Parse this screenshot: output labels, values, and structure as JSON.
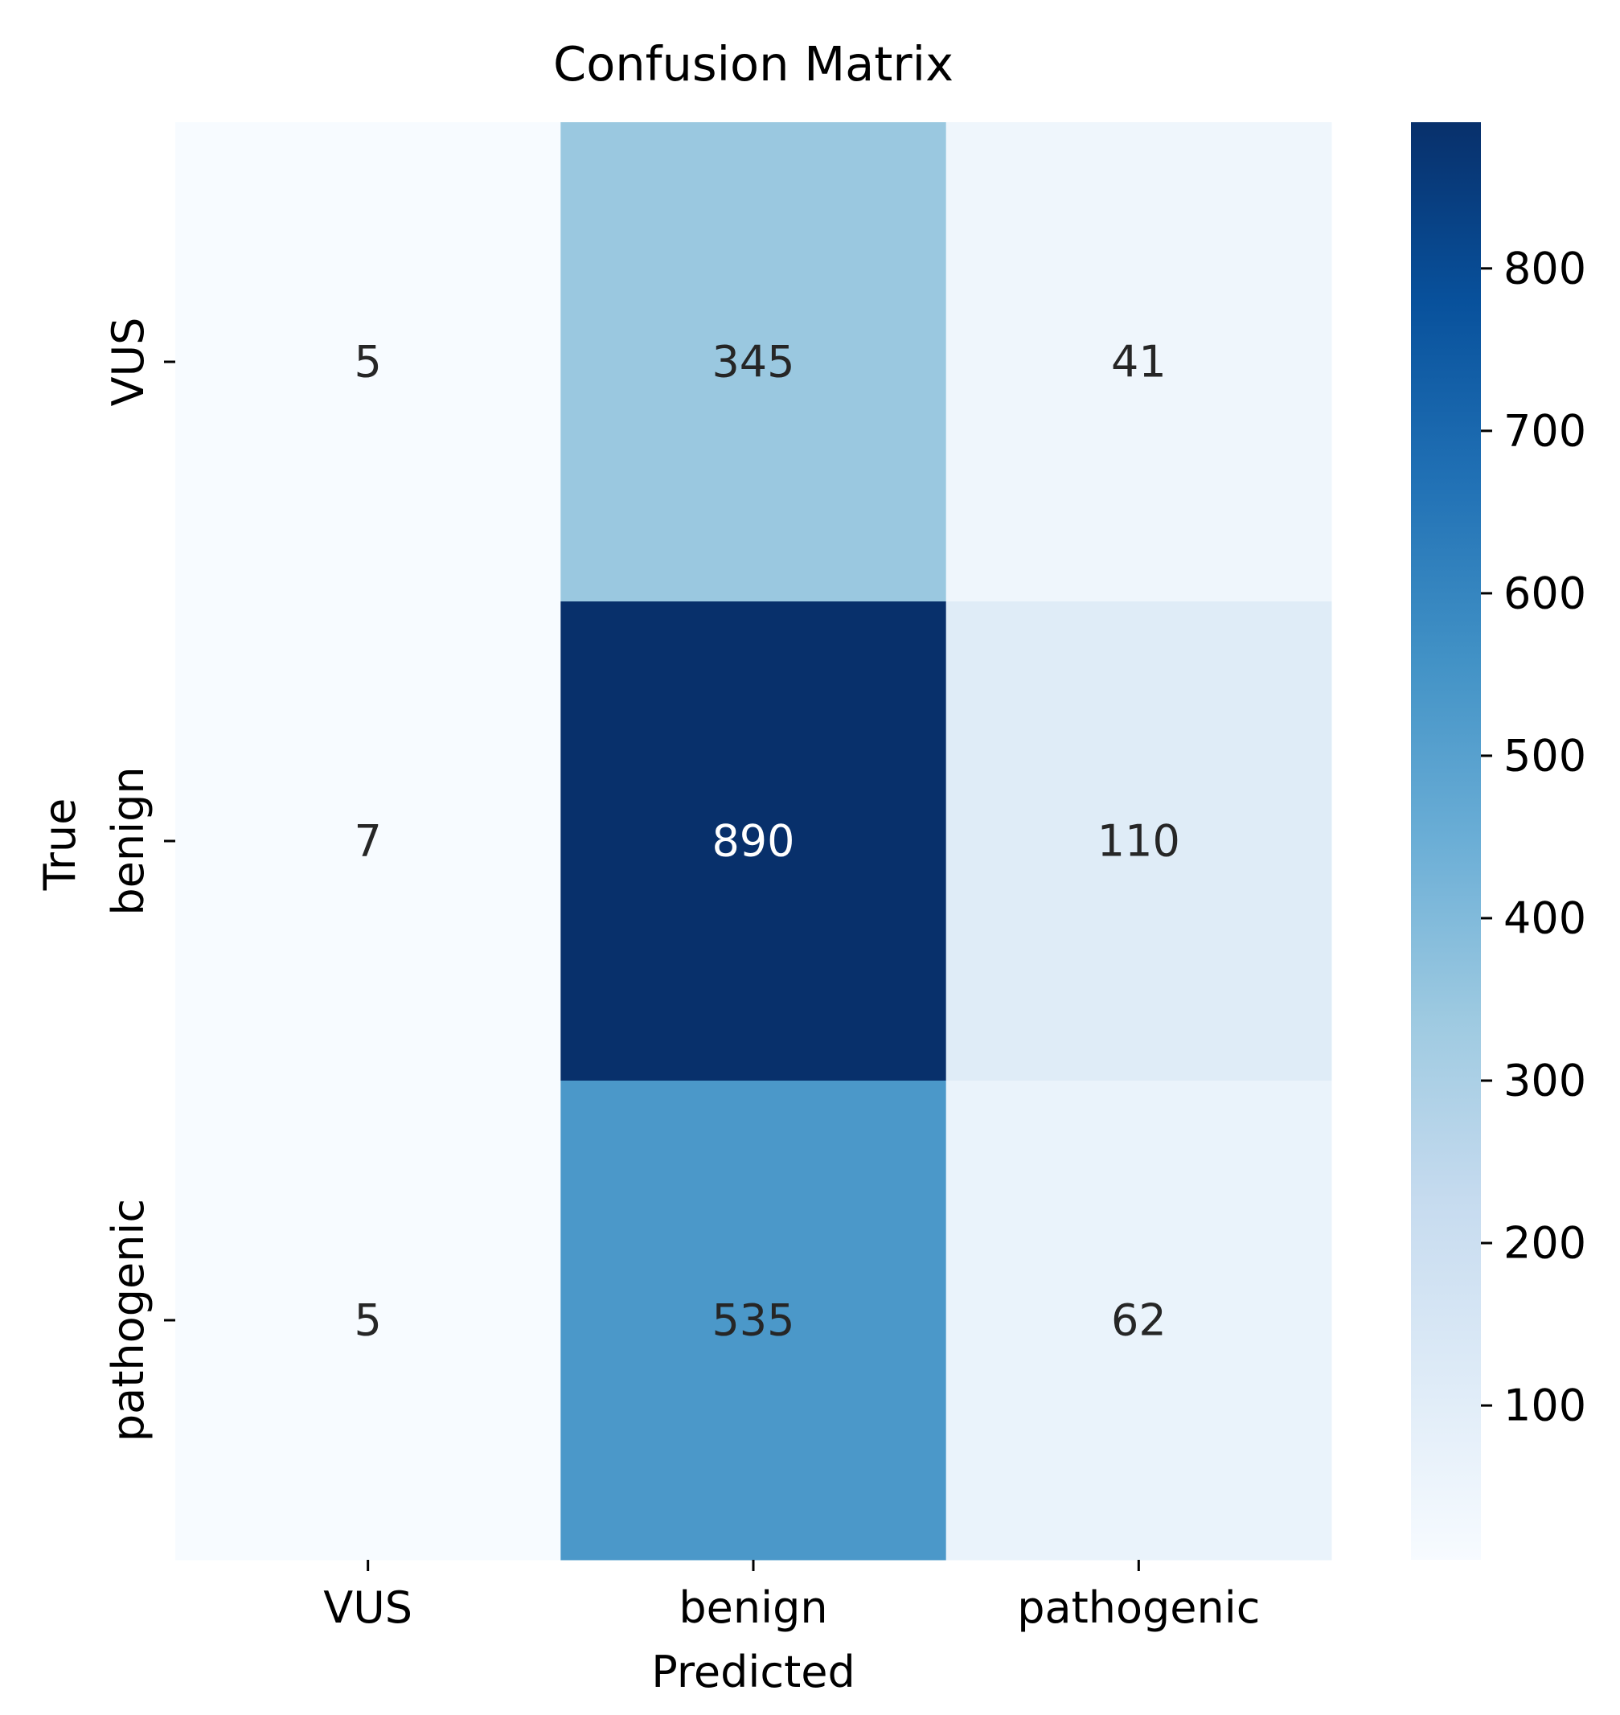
{
  "chart_data": {
    "type": "heatmap",
    "title": "Confusion Matrix",
    "xlabel": "Predicted",
    "ylabel": "True",
    "x_categories": [
      "VUS",
      "benign",
      "pathogenic"
    ],
    "y_categories": [
      "VUS",
      "benign",
      "pathogenic"
    ],
    "values": [
      [
        5,
        345,
        41
      ],
      [
        7,
        890,
        110
      ],
      [
        5,
        535,
        62
      ]
    ],
    "colormap": "Blues",
    "vmin": 5,
    "vmax": 890,
    "colorbar_ticks": [
      100,
      200,
      300,
      400,
      500,
      600,
      700,
      800
    ],
    "grid": false,
    "light_text_color": "#ffffff",
    "dark_text_color": "#262626"
  }
}
